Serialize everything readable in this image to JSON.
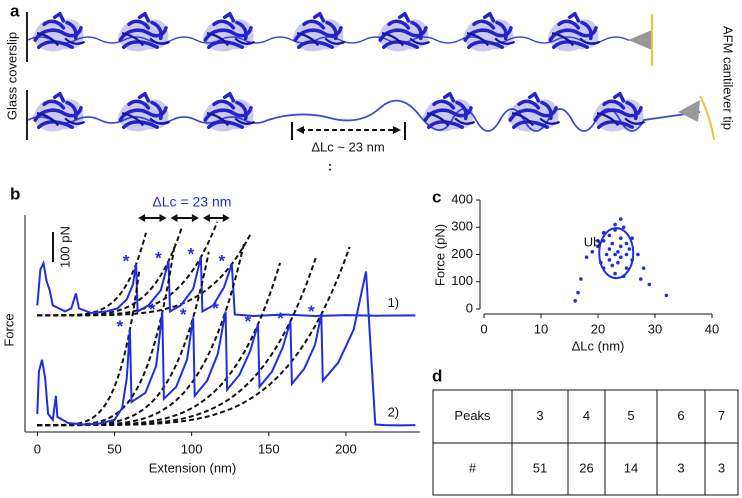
{
  "panel_labels": [
    "a",
    "b",
    "c",
    "d"
  ],
  "schematic": {
    "left_label": "Glass coverslip",
    "right_label": "AFM cantilever tip",
    "delta_label": "ΔLc ~ 23 nm",
    "ellipsis": ":"
  },
  "chart_data": [
    {
      "type": "line",
      "x_label": "Extension (nm)",
      "y_label": "Force",
      "annotation": "ΔLc = 23 nm",
      "peak_marker": "*",
      "scale_bar": {
        "value": 100,
        "label": "100 pN"
      },
      "xlim": [
        -8,
        248
      ],
      "ylim": [
        0,
        720
      ],
      "xticks": [
        0,
        50,
        100,
        150,
        200
      ],
      "series": [
        {
          "name": "1)",
          "color": "#1f2ee6",
          "x": [
            0,
            2,
            4,
            6,
            8,
            10,
            14,
            18,
            22,
            25,
            27,
            35,
            45,
            52,
            58,
            62,
            64,
            65,
            72,
            80,
            85,
            86,
            93,
            101,
            106,
            107,
            114,
            121,
            126,
            128,
            140,
            160,
            180,
            200,
            220,
            245
          ],
          "values": [
            420,
            540,
            560,
            500,
            470,
            420,
            410,
            400,
            410,
            460,
            410,
            395,
            400,
            410,
            440,
            490,
            557,
            400,
            420,
            470,
            567,
            400,
            420,
            475,
            580,
            400,
            420,
            480,
            557,
            390,
            385,
            390,
            385,
            388,
            386,
            387
          ]
        },
        {
          "name": "2)",
          "color": "#1f2ee6",
          "x": [
            0,
            1,
            3,
            5,
            7,
            10,
            12,
            13,
            20,
            30,
            40,
            50,
            55,
            58,
            60,
            61,
            70,
            77,
            81,
            82,
            90,
            97,
            101,
            102,
            110,
            117,
            122,
            123,
            131,
            138,
            143,
            144,
            152,
            159,
            164,
            165,
            173,
            180,
            184,
            185,
            195,
            205,
            213,
            219,
            225,
            235,
            245
          ],
          "values": [
            60,
            200,
            240,
            180,
            60,
            40,
            120,
            50,
            30,
            25,
            28,
            40,
            80,
            180,
            340,
            100,
            130,
            220,
            397,
            110,
            150,
            240,
            380,
            120,
            170,
            260,
            400,
            140,
            190,
            270,
            357,
            150,
            200,
            280,
            367,
            160,
            210,
            290,
            390,
            170,
            230,
            340,
            533,
            25,
            23,
            22,
            23
          ]
        }
      ]
    },
    {
      "type": "scatter",
      "x_label": "ΔLc (nm)",
      "y_label": "Force (pN)",
      "annotation": "Ub",
      "color": "#1f2ee6",
      "xlim": [
        0,
        40
      ],
      "ylim": [
        0,
        400
      ],
      "xticks": [
        0,
        10,
        20,
        30,
        40
      ],
      "yticks": [
        0,
        100,
        200,
        300,
        400
      ],
      "x": [
        16,
        17,
        16.5,
        18,
        19,
        20,
        20.5,
        21,
        21,
        21.5,
        22,
        22,
        22,
        22.5,
        22.5,
        23,
        23,
        23,
        23,
        23.5,
        23.5,
        24,
        24,
        24,
        24.5,
        24.5,
        25,
        25,
        25.5,
        26,
        26,
        27,
        27.5,
        28,
        29,
        32,
        20,
        21,
        24,
        25
      ],
      "values": [
        30,
        110,
        60,
        190,
        210,
        230,
        170,
        250,
        150,
        200,
        180,
        220,
        270,
        160,
        240,
        200,
        130,
        290,
        310,
        210,
        170,
        190,
        260,
        230,
        120,
        300,
        200,
        150,
        220,
        180,
        260,
        200,
        110,
        150,
        90,
        50,
        250,
        280,
        330,
        240
      ]
    }
  ],
  "table": {
    "header": [
      "Peaks",
      "3",
      "4",
      "5",
      "6",
      "7"
    ],
    "rows": [
      [
        "#",
        "51",
        "26",
        "14",
        "3",
        "3"
      ]
    ]
  }
}
